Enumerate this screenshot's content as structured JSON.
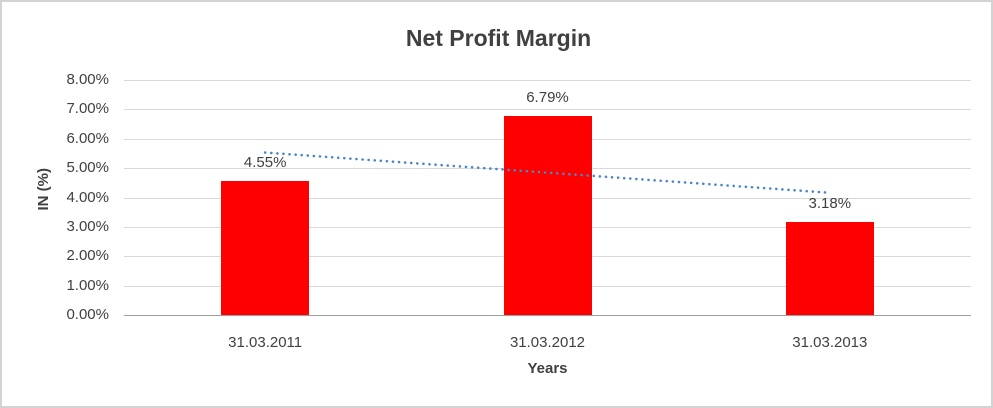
{
  "frame": {
    "border_color": "#d2d2d2",
    "background_color": "#ffffff"
  },
  "chart_data": {
    "type": "bar",
    "title": "Net Profit Margin",
    "categories": [
      "31.03.2011",
      "31.03.2012",
      "31.03.2013"
    ],
    "values": [
      4.55,
      6.79,
      3.18
    ],
    "data_labels": [
      "4.55%",
      "6.79%",
      "3.18%"
    ],
    "xlabel": "Years",
    "ylabel": "IN (%)",
    "ylim": [
      0,
      8
    ],
    "ytick_step": 1,
    "yticks": [
      "8.00%",
      "7.00%",
      "6.00%",
      "5.00%",
      "4.00%",
      "3.00%",
      "2.00%",
      "1.00%",
      "0.00%"
    ],
    "grid": true,
    "legend": false,
    "bar_color": "#ff0000",
    "gridline_color": "#d9d9d9",
    "axis_line_color": "#9e9e9e",
    "text_color": "#404040",
    "trendline": {
      "type": "linear",
      "style": "dotted",
      "color": "#4a86c8",
      "start_value": 5.53,
      "end_value": 4.16
    }
  }
}
